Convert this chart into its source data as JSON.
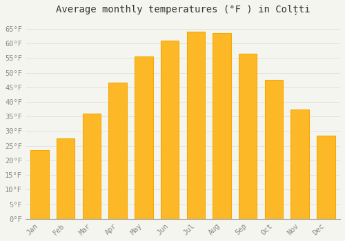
{
  "title": "Average monthly temperatures (°F ) in Colțti",
  "months": [
    "Jan",
    "Feb",
    "Mar",
    "Apr",
    "May",
    "Jun",
    "Jul",
    "Aug",
    "Sep",
    "Oct",
    "Nov",
    "Dec"
  ],
  "values": [
    23.5,
    27.5,
    36.0,
    46.5,
    55.5,
    61.0,
    64.0,
    63.5,
    56.5,
    47.5,
    37.5,
    28.5
  ],
  "bar_color": "#FDB827",
  "bar_edge_color": "#F5A800",
  "background_color": "#f5f5f0",
  "grid_color": "#dddddd",
  "ylim": [
    0,
    68
  ],
  "yticks": [
    0,
    5,
    10,
    15,
    20,
    25,
    30,
    35,
    40,
    45,
    50,
    55,
    60,
    65
  ],
  "title_fontsize": 10,
  "tick_fontsize": 7.5,
  "tick_font_color": "#888888",
  "title_font_color": "#333333"
}
